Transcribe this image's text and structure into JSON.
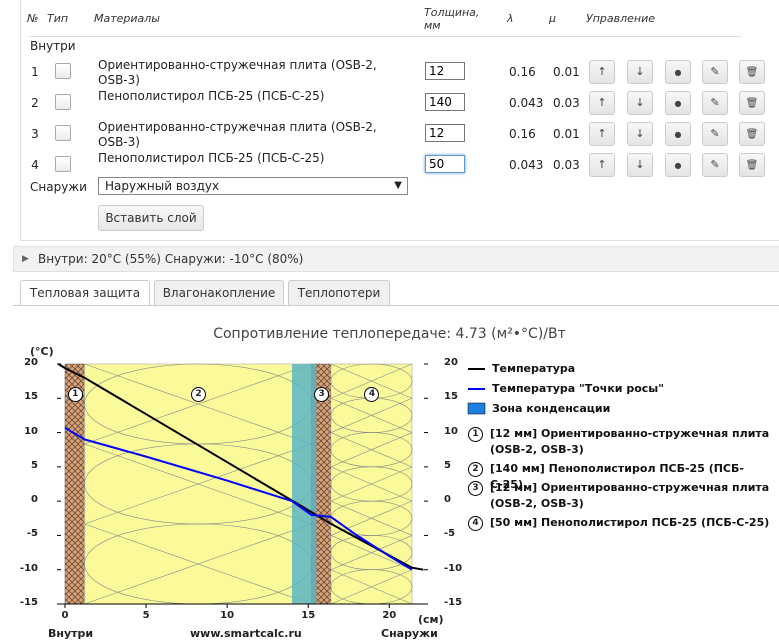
{
  "table": {
    "headers": {
      "num": "№",
      "type": "Тип",
      "materials": "Материалы",
      "thickness": "Толщина,\nмм",
      "lambda": "λ",
      "mu": "μ",
      "control": "Управление"
    },
    "inside_label": "Внутри",
    "outside_label": "Снаружи",
    "outside_value": "Наружный воздух",
    "insert_button": "Вставить слой",
    "rows": [
      {
        "num": "1",
        "material": "Ориентированно-стружечная плита (OSB-2, OSB-3)",
        "thickness": "12",
        "lambda": "0.16",
        "mu": "0.01"
      },
      {
        "num": "2",
        "material": "Пенополистирол ПСБ-25 (ПСБ-С-25)",
        "thickness": "140",
        "lambda": "0.043",
        "mu": "0.03"
      },
      {
        "num": "3",
        "material": "Ориентированно-стружечная плита (OSB-2, OSB-3)",
        "thickness": "12",
        "lambda": "0.16",
        "mu": "0.01"
      },
      {
        "num": "4",
        "material": "Пенополистирол ПСБ-25 (ПСБ-С-25)",
        "thickness": "50",
        "lambda": "0.043",
        "mu": "0.03"
      }
    ],
    "control_icons": [
      "arrow-up-icon",
      "arrow-down-icon",
      "dot-icon",
      "pencil-icon",
      "trash-icon"
    ]
  },
  "conditions": "Внутри: 20°C (55%) Снаружи: -10°C (80%)",
  "tabs": [
    "Тепловая защита",
    "Влагонакопление",
    "Теплопотери"
  ],
  "chart_title": "Сопротивление теплопередаче: 4.73 (м²•°С)/Вт",
  "colors": {
    "osb": "#d9a37a",
    "foam": "#fafa9a",
    "condensation": "#5ab5c4",
    "temperature": "#000000",
    "dew": "#0000ff"
  },
  "chart_data": {
    "type": "line",
    "y_unit": "(°С)",
    "x_unit": "(см)",
    "ylim": [
      -15,
      20
    ],
    "xlim": [
      0,
      21.4
    ],
    "yticks": [
      20,
      15,
      10,
      5,
      0,
      -5,
      -10,
      -15
    ],
    "xticks": [
      0,
      5,
      10,
      15,
      20
    ],
    "x_left_label": "Внутри",
    "x_center_label": "www.smartcalc.ru",
    "x_right_label": "Снаружи",
    "layers": [
      {
        "num": "1",
        "from": 0,
        "to": 1.2,
        "kind": "osb"
      },
      {
        "num": "2",
        "from": 1.2,
        "to": 15.2,
        "kind": "foam"
      },
      {
        "num": "3",
        "from": 15.2,
        "to": 16.4,
        "kind": "osb"
      },
      {
        "num": "4",
        "from": 16.4,
        "to": 21.4,
        "kind": "foam"
      }
    ],
    "condensation_zone": [
      14.0,
      15.5
    ],
    "series": [
      {
        "name": "Температура",
        "x": [
          -0.4,
          0,
          1.2,
          15.2,
          16.4,
          21.4,
          22.1
        ],
        "y": [
          20,
          19.4,
          18.0,
          -1.6,
          -3.3,
          -9.7,
          -10
        ]
      },
      {
        "name": "Температура \"Точки росы\"",
        "x": [
          0,
          1.2,
          5,
          10,
          14,
          15.2,
          16.4,
          18,
          20,
          21.4
        ],
        "y": [
          10.7,
          9.0,
          6.5,
          3.0,
          0.0,
          -2.0,
          -2.3,
          -5.0,
          -8.0,
          -10.0
        ]
      }
    ],
    "legend": [
      {
        "label": "Температура"
      },
      {
        "label": "Температура \"Точки росы\""
      },
      {
        "label": "Зона конденсации"
      }
    ],
    "layer_legend": [
      {
        "num": "1",
        "text": "[12 мм] Ориентированно-стружечная плита (OSB-2, OSB-3)"
      },
      {
        "num": "2",
        "text": "[140 мм] Пенополистирол ПСБ-25 (ПСБ-С-25)"
      },
      {
        "num": "3",
        "text": "[12 мм] Ориентированно-стружечная плита (OSB-2, OSB-3)"
      },
      {
        "num": "4",
        "text": "[50 мм] Пенополистирол ПСБ-25 (ПСБ-С-25)"
      }
    ]
  }
}
